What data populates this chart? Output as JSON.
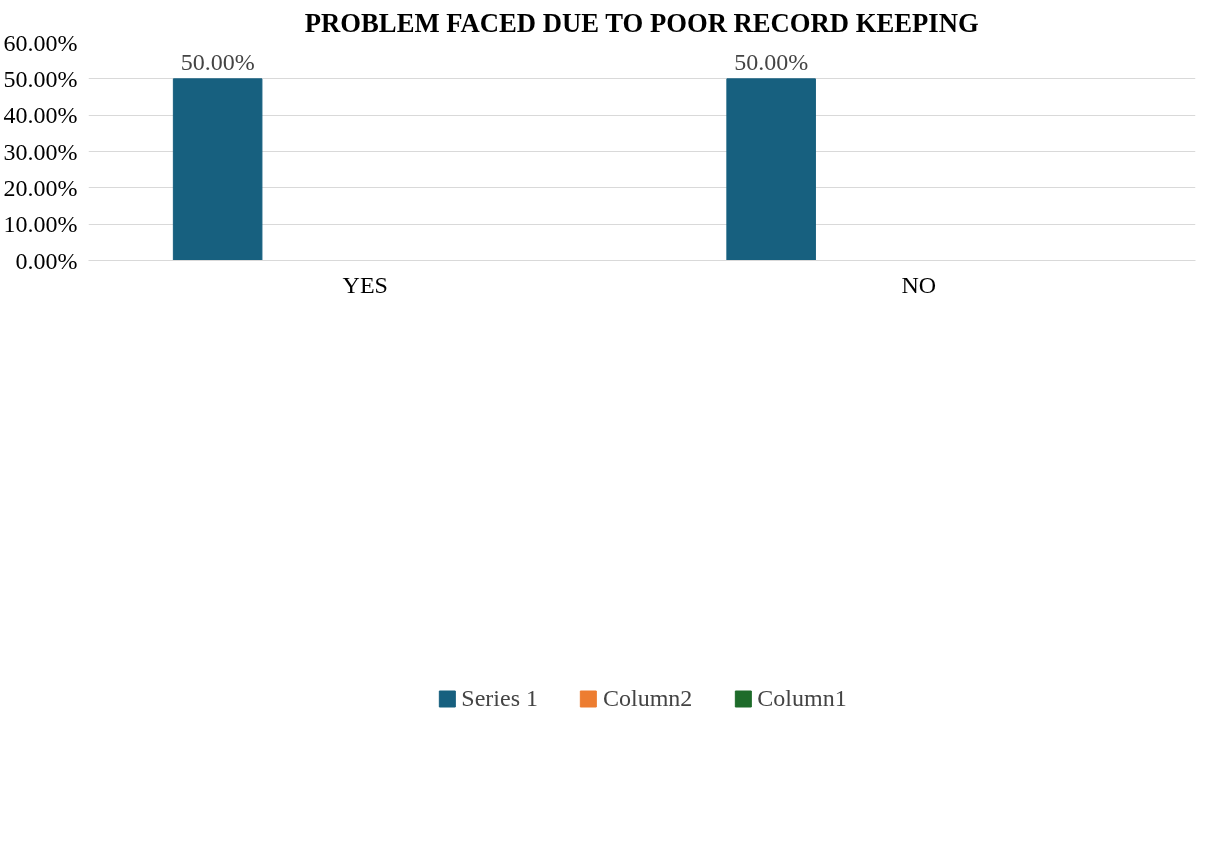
{
  "chart_data": {
    "type": "bar",
    "title": "PROBLEM FACED DUE TO POOR RECORD KEEPING",
    "categories": [
      "YES",
      "NO"
    ],
    "series": [
      {
        "name": "Series 1",
        "color": "#17607f",
        "values": [
          50,
          50
        ],
        "value_labels": [
          "50.00%",
          "50.00%"
        ]
      },
      {
        "name": "Column2",
        "color": "#ed7d31",
        "values": [
          null,
          null
        ]
      },
      {
        "name": "Column1",
        "color": "#1e6b2a",
        "values": [
          null,
          null
        ]
      }
    ],
    "ylim": [
      0,
      60
    ],
    "yticks": [
      {
        "value": 0,
        "label": "0.00%"
      },
      {
        "value": 10,
        "label": "10.00%"
      },
      {
        "value": 20,
        "label": "20.00%"
      },
      {
        "value": 30,
        "label": "30.00%"
      },
      {
        "value": 40,
        "label": "40.00%"
      },
      {
        "value": 50,
        "label": "50.00%"
      },
      {
        "value": 60,
        "label": "60.00%"
      }
    ],
    "grid": "y",
    "legend": "bottom"
  }
}
